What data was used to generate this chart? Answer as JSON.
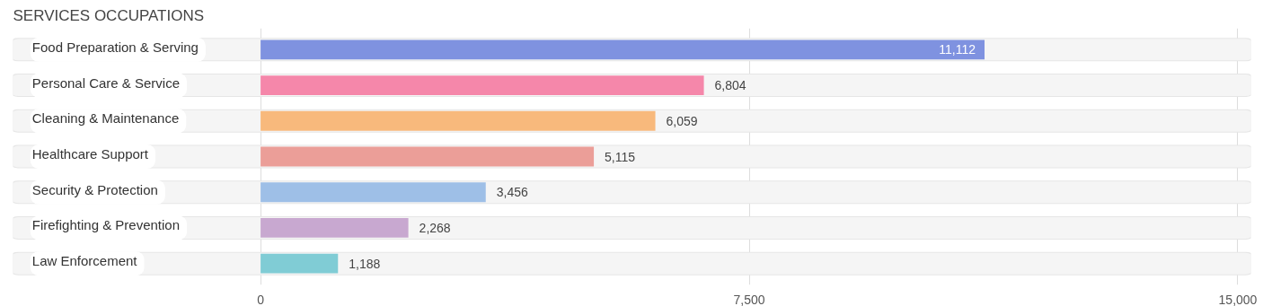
{
  "chart_data": {
    "type": "bar",
    "orientation": "horizontal",
    "title": "SERVICES OCCUPATIONS",
    "categories": [
      "Food Preparation & Serving",
      "Personal Care & Service",
      "Cleaning & Maintenance",
      "Healthcare Support",
      "Security & Protection",
      "Firefighting & Prevention",
      "Law Enforcement"
    ],
    "values": [
      11112,
      6804,
      6059,
      5115,
      3456,
      2268,
      1188
    ],
    "colors": [
      "#7f92e0",
      "#f587aa",
      "#f8b97c",
      "#eb9e98",
      "#9ebfe7",
      "#c8a8d0",
      "#80ccd5"
    ],
    "xlim": [
      -3800,
      15200
    ],
    "xticks": [
      0,
      {
        "value": 7500,
        "label": "7,500"
      },
      {
        "value": 15000,
        "label": "15,000"
      }
    ],
    "value_labels": [
      "11,112",
      "6,804",
      "6,059",
      "5,115",
      "3,456",
      "2,268",
      "1,188"
    ],
    "grid": "x"
  }
}
